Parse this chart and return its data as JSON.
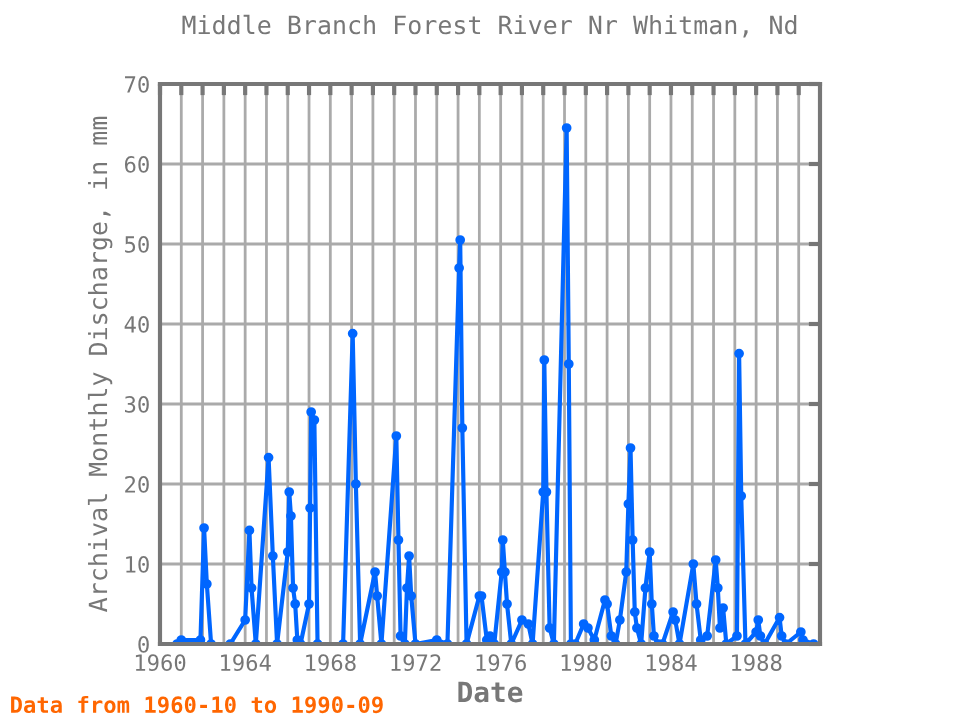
{
  "chart_data": {
    "type": "line",
    "title": "Middle Branch Forest River Nr Whitman, Nd",
    "xlabel": "Date",
    "ylabel": "Archival Monthly Discharge, in mm",
    "series": [
      {
        "color": "#0066ff",
        "x": [
          1960.8,
          1961.0,
          1961.9,
          1962.07,
          1962.2,
          1962.4,
          1963.3,
          1964.0,
          1964.2,
          1964.3,
          1964.5,
          1965.1,
          1965.3,
          1965.5,
          1966.0,
          1966.07,
          1966.15,
          1966.25,
          1966.35,
          1966.45,
          1966.6,
          1967.0,
          1967.05,
          1967.1,
          1967.25,
          1967.4,
          1968.6,
          1969.05,
          1969.2,
          1969.4,
          1970.1,
          1970.2,
          1970.4,
          1971.1,
          1971.2,
          1971.3,
          1971.5,
          1971.6,
          1971.7,
          1971.8,
          1972.0,
          1973.0,
          1973.5,
          1974.05,
          1974.1,
          1974.2,
          1974.4,
          1975.0,
          1975.1,
          1975.35,
          1975.5,
          1975.7,
          1976.05,
          1976.1,
          1976.2,
          1976.3,
          1976.5,
          1977.0,
          1977.3,
          1977.5,
          1978.0,
          1978.05,
          1978.15,
          1978.3,
          1978.5,
          1979.1,
          1979.2,
          1979.3,
          1979.5,
          1979.9,
          1980.1,
          1980.4,
          1980.9,
          1981.0,
          1981.2,
          1981.4,
          1981.6,
          1981.9,
          1982.0,
          1982.1,
          1982.2,
          1982.3,
          1982.4,
          1982.6,
          1982.8,
          1983.0,
          1983.1,
          1983.2,
          1983.4,
          1983.6,
          1984.1,
          1984.2,
          1984.4,
          1985.05,
          1985.2,
          1985.4,
          1985.7,
          1986.1,
          1986.2,
          1986.3,
          1986.45,
          1986.6,
          1987.1,
          1987.2,
          1987.3,
          1987.5,
          1988.0,
          1988.1,
          1988.2,
          1988.4,
          1989.1,
          1989.2,
          1989.4,
          1990.1,
          1990.2,
          1990.7
        ],
        "values": [
          0,
          0.5,
          0.5,
          14.5,
          7.5,
          0,
          0,
          3,
          14.2,
          7,
          0,
          23.3,
          11,
          0,
          11.5,
          19,
          16,
          7,
          5,
          0.5,
          0,
          5,
          17,
          29,
          28,
          0,
          0,
          38.8,
          20,
          0,
          9,
          6,
          0,
          26,
          13,
          1,
          0,
          7,
          11,
          6,
          0,
          0.5,
          0,
          47,
          50.5,
          27,
          0,
          6,
          6,
          0.5,
          1,
          0,
          9,
          13,
          9,
          5,
          0,
          3,
          2.5,
          0,
          19,
          35.5,
          19,
          2,
          0,
          64.5,
          35,
          0,
          0,
          2.5,
          2,
          0.5,
          5.5,
          5,
          1,
          0,
          3,
          9,
          17.5,
          24.5,
          13,
          4,
          2,
          0,
          7,
          11.5,
          5,
          1,
          0,
          0,
          4,
          3,
          0,
          10,
          5,
          0.5,
          1,
          10.5,
          7,
          2,
          4.5,
          0,
          1,
          36.3,
          18.5,
          0,
          1.5,
          3,
          1,
          0,
          3.3,
          1,
          0,
          1.5,
          0.5,
          0
        ]
      }
    ],
    "xlim": [
      1960,
      1991
    ],
    "ylim": [
      0,
      70
    ],
    "xticks": [
      1960,
      {
        "value": 1961,
        "label": null
      },
      {
        "value": 1962,
        "label": null
      },
      {
        "value": 1963,
        "label": null
      },
      1964,
      {
        "value": 1965,
        "label": null
      },
      {
        "value": 1966,
        "label": null
      },
      {
        "value": 1967,
        "label": null
      },
      1968,
      {
        "value": 1969,
        "label": null
      },
      {
        "value": 1970,
        "label": null
      },
      {
        "value": 1971,
        "label": null
      },
      1972,
      {
        "value": 1973,
        "label": null
      },
      {
        "value": 1974,
        "label": null
      },
      {
        "value": 1975,
        "label": null
      },
      1976,
      {
        "value": 1977,
        "label": null
      },
      {
        "value": 1978,
        "label": null
      },
      {
        "value": 1979,
        "label": null
      },
      1980,
      {
        "value": 1981,
        "label": null
      },
      {
        "value": 1982,
        "label": null
      },
      {
        "value": 1983,
        "label": null
      },
      1984,
      {
        "value": 1985,
        "label": null
      },
      {
        "value": 1986,
        "label": null
      },
      {
        "value": 1987,
        "label": null
      },
      1988,
      {
        "value": 1989,
        "label": null
      },
      {
        "value": 1990,
        "label": null
      }
    ],
    "yticks": [
      0,
      10,
      20,
      30,
      40,
      50,
      60,
      70
    ],
    "grid": true,
    "marker": "circle",
    "line_style": "solid",
    "annotations": [
      "Data from 1960-10 to 1990-09"
    ]
  }
}
